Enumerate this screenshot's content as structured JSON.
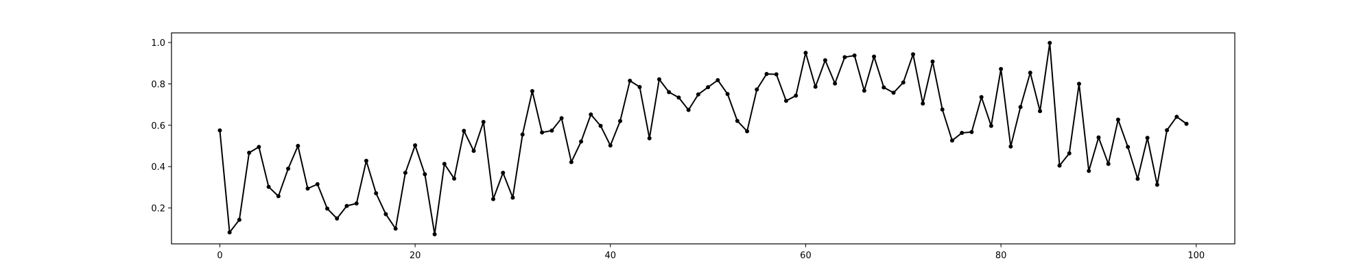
{
  "chart_data": {
    "type": "line",
    "title": "",
    "xlabel": "",
    "ylabel": "",
    "xlim": [
      -4.95,
      103.95
    ],
    "ylim": [
      0.0265,
      1.0465
    ],
    "xticks": [
      0,
      20,
      40,
      60,
      80,
      100
    ],
    "yticks": [
      0.2,
      0.4,
      0.6,
      0.8,
      1.0
    ],
    "xtick_labels": [
      "0",
      "20",
      "40",
      "60",
      "80",
      "100"
    ],
    "ytick_labels": [
      "0.2",
      "0.4",
      "0.6",
      "0.8",
      "1.0"
    ],
    "grid": false,
    "legend": "none",
    "color": "#000000",
    "marker": "circle",
    "series": [
      {
        "x": [
          0,
          1,
          2,
          3,
          4,
          5,
          6,
          7,
          8,
          9,
          10,
          11,
          12,
          13,
          14,
          15,
          16,
          17,
          18,
          19,
          20,
          21,
          22,
          23,
          24,
          25,
          26,
          27,
          28,
          29,
          30,
          31,
          32,
          33,
          34,
          35,
          36,
          37,
          38,
          39,
          40,
          41,
          42,
          43,
          44,
          45,
          46,
          47,
          48,
          49,
          50,
          51,
          52,
          53,
          54,
          55,
          56,
          57,
          58,
          59,
          60,
          61,
          62,
          63,
          64,
          65,
          66,
          67,
          68,
          69,
          70,
          71,
          72,
          73,
          74,
          75,
          76,
          77,
          78,
          79,
          80,
          81,
          82,
          83,
          84,
          85,
          86,
          87,
          88,
          89,
          90,
          91,
          92,
          93,
          94,
          95,
          96,
          97,
          98,
          99
        ],
        "y": [
          0.575,
          0.082,
          0.143,
          0.467,
          0.495,
          0.302,
          0.257,
          0.39,
          0.5,
          0.294,
          0.315,
          0.197,
          0.149,
          0.21,
          0.222,
          0.428,
          0.271,
          0.17,
          0.1,
          0.37,
          0.503,
          0.363,
          0.073,
          0.413,
          0.342,
          0.573,
          0.476,
          0.616,
          0.243,
          0.37,
          0.25,
          0.555,
          0.765,
          0.565,
          0.574,
          0.634,
          0.422,
          0.521,
          0.652,
          0.597,
          0.502,
          0.62,
          0.815,
          0.785,
          0.537,
          0.822,
          0.76,
          0.734,
          0.674,
          0.749,
          0.784,
          0.818,
          0.751,
          0.621,
          0.571,
          0.773,
          0.848,
          0.846,
          0.718,
          0.743,
          0.95,
          0.786,
          0.914,
          0.802,
          0.929,
          0.937,
          0.767,
          0.932,
          0.783,
          0.757,
          0.807,
          0.943,
          0.705,
          0.908,
          0.676,
          0.526,
          0.563,
          0.567,
          0.736,
          0.597,
          0.872,
          0.497,
          0.688,
          0.854,
          0.668,
          0.998,
          0.405,
          0.464,
          0.8,
          0.379,
          0.541,
          0.413,
          0.627,
          0.495,
          0.341,
          0.539,
          0.312,
          0.576,
          0.641,
          0.607
        ]
      }
    ]
  }
}
